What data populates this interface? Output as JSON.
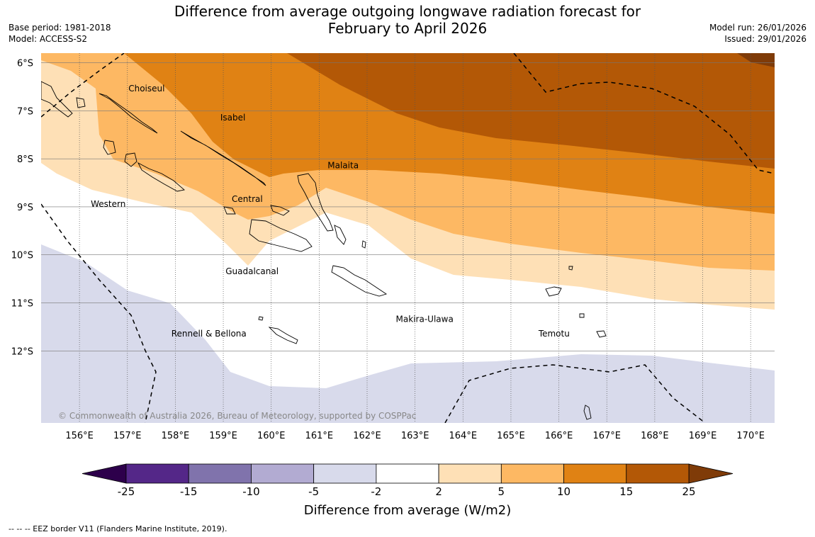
{
  "title_line1": "Difference from average outgoing longwave radiation forecast for",
  "title_line2": "February to April 2026",
  "base_period": "Base period: 1981-2018",
  "model": "Model: ACCESS-S2",
  "model_run": "Model run: 26/01/2026",
  "issued": "Issued: 29/01/2026",
  "copyright": "© Commonwealth of Australia 2026, Bureau of Meteorology, supported by COSPPac",
  "colorbar_label": "Difference from average (W/m2)",
  "eez_legend": "--  --  -- EEZ border V11 (Flanders Marine Institute, 2019).",
  "map": {
    "lon_range": [
      155.2,
      170.5
    ],
    "lat_range": [
      -13.5,
      -5.8
    ],
    "lon_ticks": [
      156,
      157,
      158,
      159,
      160,
      161,
      162,
      163,
      164,
      165,
      166,
      167,
      168,
      169,
      170
    ],
    "lon_tick_labels": [
      "156°E",
      "157°E",
      "158°E",
      "159°E",
      "160°E",
      "161°E",
      "162°E",
      "163°E",
      "164°E",
      "165°E",
      "166°E",
      "167°E",
      "168°E",
      "169°E",
      "170°E"
    ],
    "lat_ticks": [
      -6,
      -7,
      -8,
      -9,
      -10,
      -11,
      -12
    ],
    "lat_tick_labels": [
      "6°S",
      "7°S",
      "8°S",
      "9°S",
      "10°S",
      "11°S",
      "12°S"
    ],
    "province_labels": [
      {
        "name": "Choiseul",
        "lon": 157.4,
        "lat": -6.6
      },
      {
        "name": "Isabel",
        "lon": 159.2,
        "lat": -7.2
      },
      {
        "name": "Malaita",
        "lon": 161.5,
        "lat": -8.2
      },
      {
        "name": "Central",
        "lon": 159.5,
        "lat": -8.9
      },
      {
        "name": "Western",
        "lon": 156.6,
        "lat": -9.0
      },
      {
        "name": "Guadalcanal",
        "lon": 159.6,
        "lat": -10.4
      },
      {
        "name": "Makira-Ulawa",
        "lon": 163.2,
        "lat": -11.4
      },
      {
        "name": "Rennell & Bellona",
        "lon": 158.7,
        "lat": -11.7
      },
      {
        "name": "Temotu",
        "lon": 165.9,
        "lat": -11.7
      }
    ]
  },
  "colorbar": {
    "boundaries": [
      "-25",
      "-15",
      "-10",
      "-5",
      "-2",
      "2",
      "5",
      "10",
      "15",
      "25"
    ],
    "colors": [
      "#542788",
      "#8073ac",
      "#b2abd2",
      "#d8daeb",
      "#ffffff",
      "#fee0b6",
      "#fdb863",
      "#e08214",
      "#b35806"
    ],
    "under_color": "#2d004b",
    "over_color": "#7f3b08"
  }
}
